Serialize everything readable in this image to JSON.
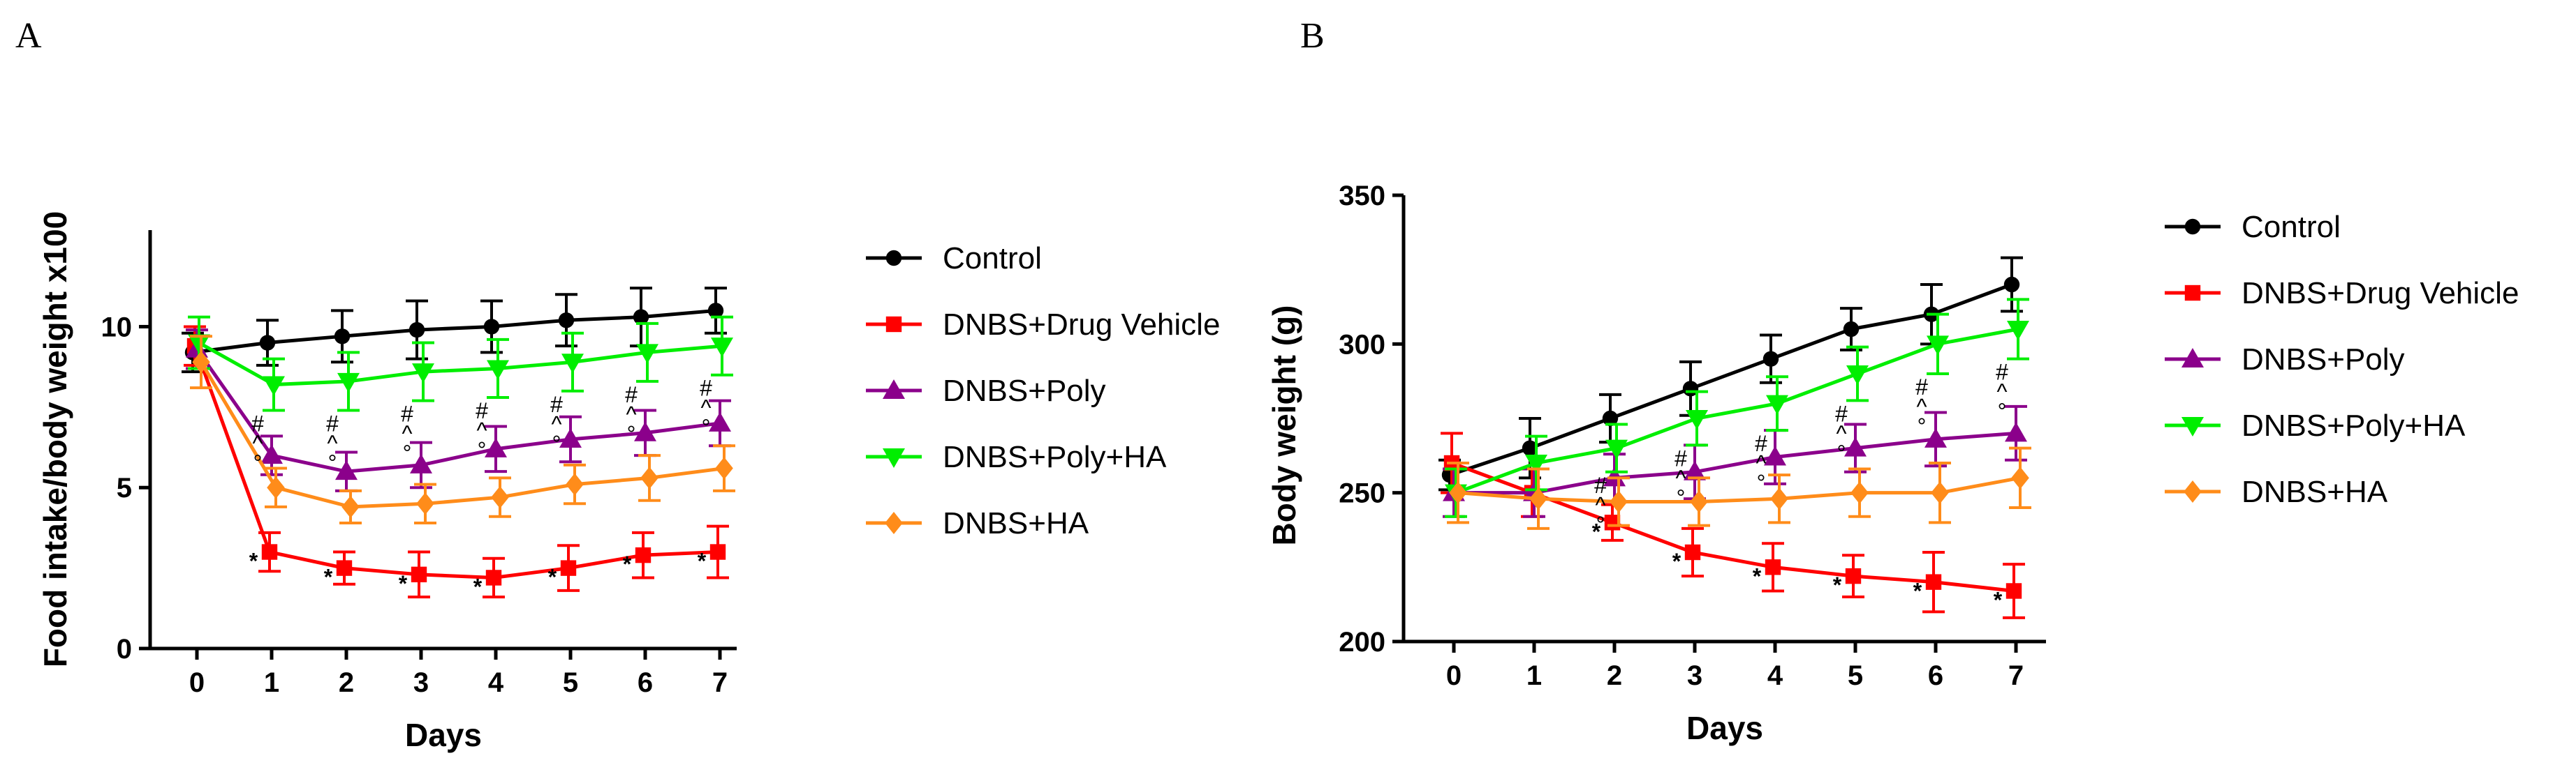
{
  "figure": {
    "panels": [
      "A",
      "B"
    ]
  },
  "chart_data": [
    {
      "type": "line",
      "panel": "A",
      "title": "",
      "xlabel": "Days",
      "ylabel": "Food intake/body weight x100",
      "x": [
        0,
        1,
        2,
        3,
        4,
        5,
        6,
        7
      ],
      "xticks": [
        "0",
        "1",
        "2",
        "3",
        "4",
        "5",
        "6",
        "7"
      ],
      "ylim": [
        0,
        13
      ],
      "yticks": [
        0,
        5,
        10
      ],
      "legend_position": "right",
      "series": [
        {
          "name": "Control",
          "color": "#000000",
          "marker": "circle",
          "values": [
            9.2,
            9.5,
            9.7,
            9.9,
            10.0,
            10.2,
            10.3,
            10.5
          ],
          "errors": [
            0.6,
            0.7,
            0.8,
            0.9,
            0.8,
            0.8,
            0.9,
            0.7
          ]
        },
        {
          "name": "DNBS+Drug Vehicle",
          "color": "#ff0000",
          "marker": "square",
          "values": [
            9.4,
            3.0,
            2.5,
            2.3,
            2.2,
            2.5,
            2.9,
            3.0
          ],
          "errors": [
            0.6,
            0.6,
            0.5,
            0.7,
            0.6,
            0.7,
            0.7,
            0.8
          ]
        },
        {
          "name": "DNBS+Poly",
          "color": "#8b008b",
          "marker": "triangle-up",
          "values": [
            9.3,
            6.0,
            5.5,
            5.7,
            6.2,
            6.5,
            6.7,
            7.0
          ],
          "errors": [
            0.6,
            0.6,
            0.6,
            0.7,
            0.7,
            0.7,
            0.7,
            0.7
          ]
        },
        {
          "name": "DNBS+Poly+HA",
          "color": "#00ee00",
          "marker": "triangle-down",
          "values": [
            9.5,
            8.2,
            8.3,
            8.6,
            8.7,
            8.9,
            9.2,
            9.4
          ],
          "errors": [
            0.8,
            0.8,
            0.9,
            0.9,
            0.9,
            0.9,
            0.9,
            0.9
          ]
        },
        {
          "name": "DNBS+HA",
          "color": "#ff8c1a",
          "marker": "diamond",
          "values": [
            8.9,
            5.0,
            4.4,
            4.5,
            4.7,
            5.1,
            5.3,
            5.6
          ],
          "errors": [
            0.8,
            0.6,
            0.5,
            0.6,
            0.6,
            0.6,
            0.7,
            0.7
          ]
        }
      ],
      "annotations": {
        "star_days": [
          1,
          2,
          3,
          4,
          5,
          6,
          7
        ],
        "star": "*",
        "stack_days": [
          1,
          2,
          3,
          4,
          5,
          6,
          7
        ],
        "stack": [
          "#",
          "^",
          "°"
        ]
      }
    },
    {
      "type": "line",
      "panel": "B",
      "title": "",
      "xlabel": "Days",
      "ylabel": "Body weight (g)",
      "x": [
        0,
        1,
        2,
        3,
        4,
        5,
        6,
        7
      ],
      "xticks": [
        "0",
        "1",
        "2",
        "3",
        "4",
        "5",
        "6",
        "7"
      ],
      "ylim": [
        200,
        350
      ],
      "yticks": [
        200,
        250,
        300,
        350
      ],
      "legend_position": "right",
      "series": [
        {
          "name": "Control",
          "color": "#000000",
          "marker": "circle",
          "values": [
            256,
            265,
            275,
            285,
            295,
            305,
            310,
            320
          ],
          "errors": [
            5,
            10,
            8,
            9,
            8,
            7,
            10,
            9
          ]
        },
        {
          "name": "DNBS+Drug Vehicle",
          "color": "#ff0000",
          "marker": "square",
          "values": [
            260,
            250,
            240,
            230,
            225,
            222,
            220,
            217
          ],
          "errors": [
            10,
            8,
            6,
            8,
            8,
            7,
            10,
            9
          ]
        },
        {
          "name": "DNBS+Poly",
          "color": "#8b008b",
          "marker": "triangle-up",
          "values": [
            250,
            250,
            255,
            257,
            262,
            265,
            268,
            270
          ],
          "errors": [
            8,
            8,
            8,
            9,
            9,
            8,
            9,
            9
          ]
        },
        {
          "name": "DNBS+Poly+HA",
          "color": "#00ee00",
          "marker": "triangle-down",
          "values": [
            250,
            260,
            265,
            275,
            280,
            290,
            300,
            305
          ],
          "errors": [
            8,
            9,
            8,
            9,
            9,
            9,
            10,
            10
          ]
        },
        {
          "name": "DNBS+HA",
          "color": "#ff8c1a",
          "marker": "diamond",
          "values": [
            250,
            248,
            247,
            247,
            248,
            250,
            250,
            255
          ],
          "errors": [
            10,
            10,
            8,
            8,
            8,
            8,
            10,
            10
          ]
        }
      ],
      "annotations": {
        "star_days": [
          2,
          3,
          4,
          5,
          6,
          7
        ],
        "star": "*",
        "stack_days": [
          2,
          3,
          4,
          5,
          6,
          7
        ],
        "stack": [
          "#",
          "^",
          "°"
        ]
      }
    }
  ]
}
